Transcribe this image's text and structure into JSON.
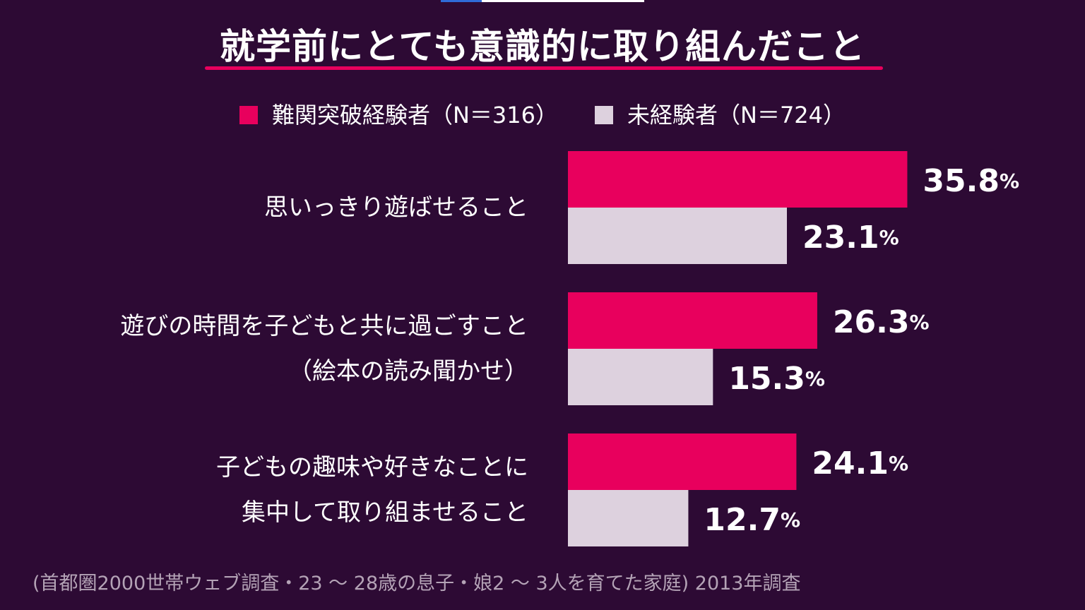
{
  "chart_data": {
    "type": "bar",
    "orientation": "horizontal",
    "title": "就学前にとても意識的に取り組んだこと",
    "categories": [
      [
        "思いっきり遊ばせること"
      ],
      [
        "遊びの時間を子どもと共に過ごすこと",
        "（絵本の読み聞かせ）"
      ],
      [
        "子どもの趣味や好きなことに",
        "集中して取り組ませること"
      ]
    ],
    "series": [
      {
        "name": "難関突破経験者（N＝316）",
        "color": "#e8005d",
        "values": [
          35.8,
          26.3,
          24.1
        ]
      },
      {
        "name": "未経験者（N＝724）",
        "color": "#ddd1de",
        "values": [
          23.1,
          15.3,
          12.7
        ]
      }
    ],
    "value_suffix": "%",
    "xlim": [
      0,
      40
    ],
    "grid": false,
    "legend_position": "top"
  },
  "colors": {
    "background": "#2d0a34",
    "accent": "#e8005d",
    "text": "#ffffff",
    "muted_text": "#b4a3b6"
  },
  "source": "(首都圏2000世帯ウェブ調査・23 ～ 28歳の息子・娘2 ～ 3人を育てた家庭) 2013年調査"
}
